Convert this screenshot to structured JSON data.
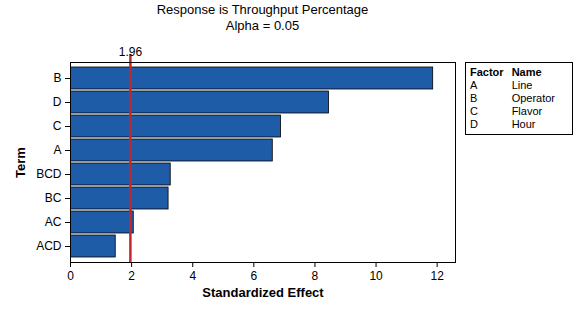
{
  "chart_data": {
    "type": "bar",
    "orientation": "horizontal",
    "title": "Response is Throughput Percentage",
    "subtitle": "Alpha = 0.05",
    "categories": [
      "B",
      "D",
      "C",
      "A",
      "BCD",
      "BC",
      "AC",
      "ACD"
    ],
    "values": [
      11.87,
      8.46,
      6.89,
      6.62,
      3.28,
      3.21,
      2.07,
      1.48
    ],
    "color": "#1f5ca8",
    "xlim": [
      0,
      12.6
    ],
    "xticks": [
      0,
      2,
      4,
      6,
      8,
      10,
      12
    ],
    "xlabel": "Standardized Effect",
    "ylabel": "Term",
    "reference_line": {
      "value": 1.96,
      "color": "#c0282d"
    },
    "legend_table": {
      "columns": [
        "Factor",
        "Name"
      ],
      "rows": [
        [
          "A",
          "Line"
        ],
        [
          "B",
          "Operator"
        ],
        [
          "C",
          "Flavor"
        ],
        [
          "D",
          "Hour"
        ]
      ]
    }
  }
}
